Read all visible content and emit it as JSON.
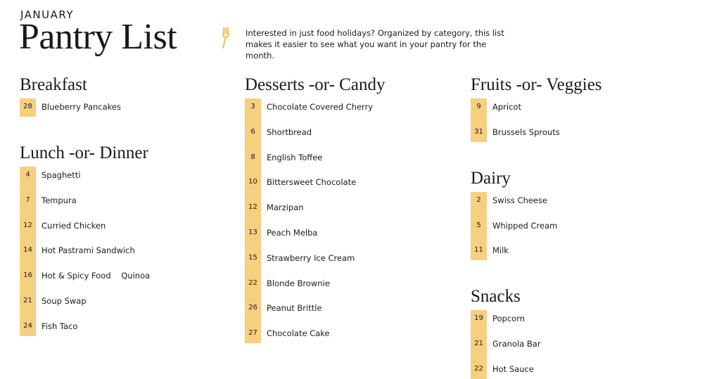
{
  "header": {
    "month": "JANUARY",
    "title": "Pantry List",
    "description": "Interested in just food holidays? Organized by category, this list makes it easier to see what you want in your pantry for the month."
  },
  "columns": [
    [
      {
        "title": "Breakfast",
        "items": [
          {
            "day": 28,
            "name": "Blueberry Pancakes"
          }
        ]
      },
      {
        "title": "Lunch -or- Dinner",
        "items": [
          {
            "day": 4,
            "name": "Spaghetti"
          },
          {
            "day": 7,
            "name": "Tempura"
          },
          {
            "day": 12,
            "name": "Curried Chicken"
          },
          {
            "day": 14,
            "name": "Hot Pastrami Sandwich"
          },
          {
            "day": 16,
            "name": "Hot & Spicy Food    Quinoa"
          },
          {
            "day": 21,
            "name": "Soup Swap"
          },
          {
            "day": 24,
            "name": "Fish Taco"
          }
        ]
      }
    ],
    [
      {
        "title": "Desserts -or- Candy",
        "items": [
          {
            "day": 3,
            "name": "Chocolate Covered Cherry"
          },
          {
            "day": 6,
            "name": "Shortbread"
          },
          {
            "day": 8,
            "name": "English Toffee"
          },
          {
            "day": 10,
            "name": "Bittersweet Chocolate"
          },
          {
            "day": 12,
            "name": "Marzipan"
          },
          {
            "day": 13,
            "name": "Peach Melba"
          },
          {
            "day": 15,
            "name": "Strawberry Ice Cream"
          },
          {
            "day": 22,
            "name": "Blonde Brownie"
          },
          {
            "day": 26,
            "name": "Peanut Brittle"
          },
          {
            "day": 27,
            "name": "Chocolate Cake"
          }
        ]
      }
    ],
    [
      {
        "title": "Fruits -or- Veggies",
        "items": [
          {
            "day": 9,
            "name": "Apricot"
          },
          {
            "day": 31,
            "name": "Brussels Sprouts"
          }
        ]
      },
      {
        "title": "Dairy",
        "items": [
          {
            "day": 2,
            "name": "Swiss Cheese"
          },
          {
            "day": 5,
            "name": "Whipped Cream"
          },
          {
            "day": 11,
            "name": "Milk"
          }
        ]
      },
      {
        "title": "Snacks",
        "items": [
          {
            "day": 19,
            "name": "Popcorn"
          },
          {
            "day": 21,
            "name": "Granola Bar"
          },
          {
            "day": 22,
            "name": "Hot Sauce"
          }
        ]
      }
    ]
  ]
}
